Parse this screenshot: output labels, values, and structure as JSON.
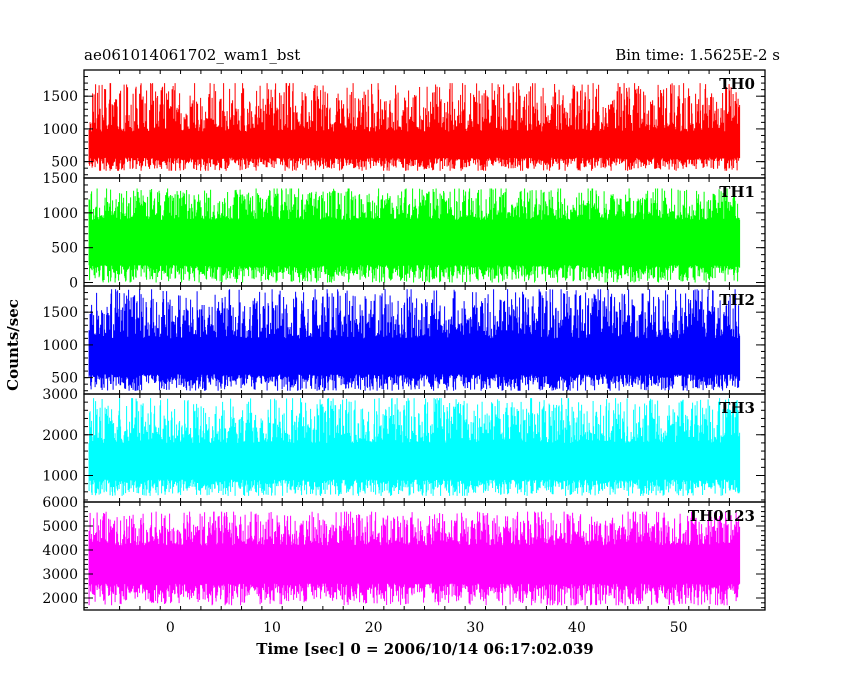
{
  "header": {
    "left_title": "ae061014061702_wam1_bst",
    "right_title": "Bin time: 1.5625E-2 s"
  },
  "chart_data": {
    "type": "line",
    "xlabel": "Time [sec] 0 = 2006/10/14 06:17:02.039",
    "ylabel": "Counts/sec",
    "xlim": [
      -8.5,
      58.5
    ],
    "x_data_range": [
      -8.0,
      56.0
    ],
    "x_ticks": [
      0,
      10,
      20,
      30,
      40,
      50
    ],
    "panels": [
      {
        "name": "TH0",
        "color": "#ff0000",
        "ylim": [
          250,
          1900
        ],
        "y_ticks": [
          500,
          1000,
          1500
        ],
        "envelope": [
          360,
          1700
        ],
        "baseline": [
          560,
          960
        ]
      },
      {
        "name": "TH1",
        "color": "#00ff00",
        "ylim": [
          -50,
          1500
        ],
        "y_ticks": [
          0,
          500,
          1000,
          1500
        ],
        "envelope": [
          0,
          1350
        ],
        "baseline": [
          250,
          900
        ]
      },
      {
        "name": "TH2",
        "color": "#0000ff",
        "ylim": [
          250,
          1900
        ],
        "y_ticks": [
          500,
          1000,
          1500
        ],
        "envelope": [
          300,
          1850
        ],
        "baseline": [
          550,
          1100
        ]
      },
      {
        "name": "TH3",
        "color": "#00ffff",
        "ylim": [
          350,
          3000
        ],
        "y_ticks": [
          1000,
          2000,
          3000
        ],
        "envelope": [
          500,
          2900
        ],
        "baseline": [
          900,
          1800
        ]
      },
      {
        "name": "TH0123",
        "color": "#ff00ff",
        "ylim": [
          1500,
          6000
        ],
        "y_ticks": [
          2000,
          3000,
          4000,
          5000,
          6000
        ],
        "envelope": [
          1700,
          5600
        ],
        "baseline": [
          2600,
          4200
        ]
      }
    ]
  }
}
